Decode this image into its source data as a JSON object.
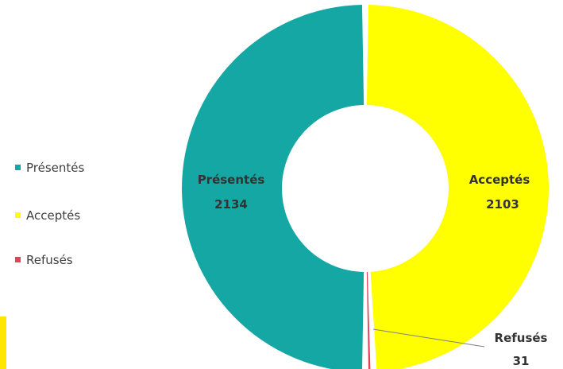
{
  "chart_data": {
    "type": "donut",
    "title": "",
    "categories": [
      "Présentés",
      "Acceptés",
      "Refusés"
    ],
    "values": [
      2134,
      2103,
      31
    ],
    "legend_position": "left",
    "series": [
      {
        "name": "Présentés",
        "value": 2134,
        "color": "#14a7a3",
        "label": "Présentés",
        "value_label": "2134"
      },
      {
        "name": "Acceptés",
        "value": 2103,
        "color": "#ffff00",
        "label": "Acceptés",
        "value_label": "2103"
      },
      {
        "name": "Refusés",
        "value": 31,
        "color": "#e8405a",
        "label": "Refusés",
        "value_label": "31"
      }
    ]
  },
  "colors": {
    "background": "#ffffff",
    "leader_line": "#7f7f7f",
    "corner_accent": "#ffe600"
  }
}
